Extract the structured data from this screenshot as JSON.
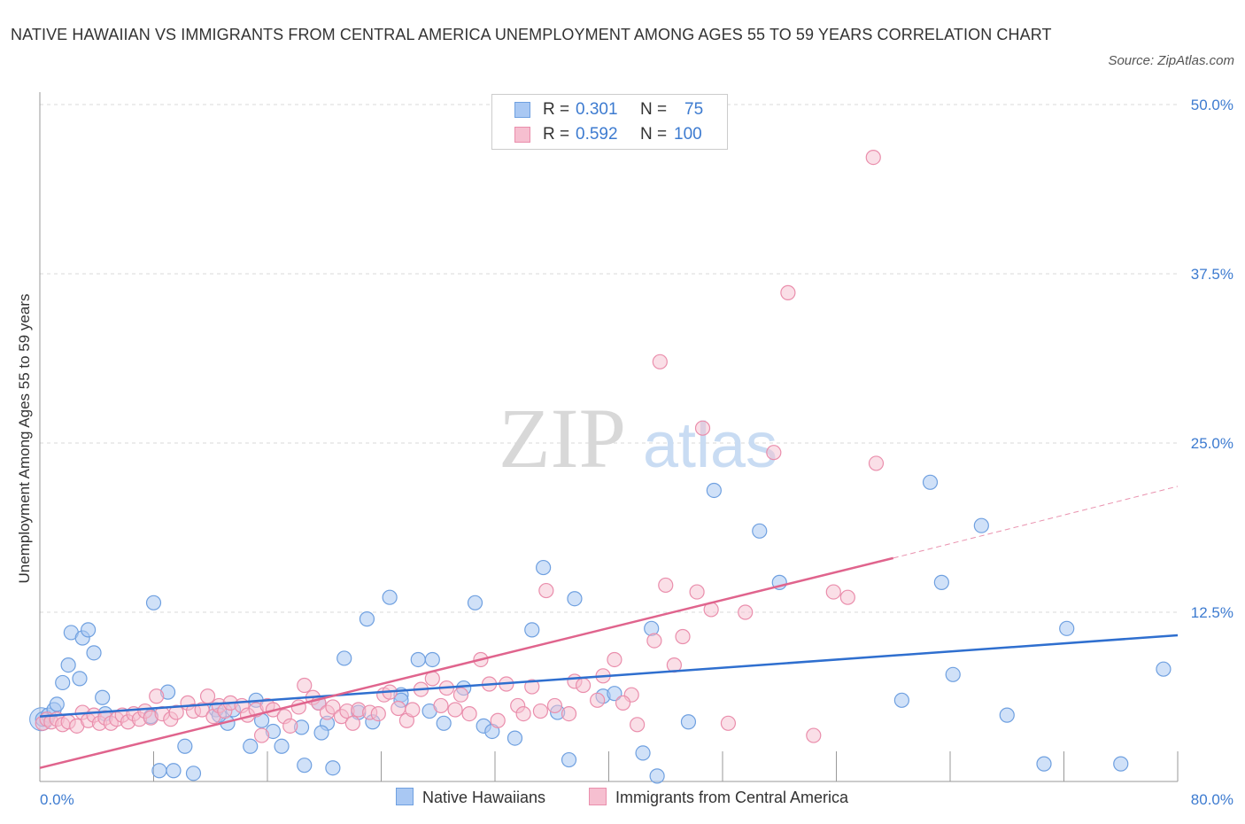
{
  "header": {
    "title": "NATIVE HAWAIIAN VS IMMIGRANTS FROM CENTRAL AMERICA UNEMPLOYMENT AMONG AGES 55 TO 59 YEARS CORRELATION CHART",
    "source": "Source: ZipAtlas.com"
  },
  "watermark": {
    "zip": "ZIP",
    "atlas": "atlas"
  },
  "legend": {
    "rows": [
      {
        "r_label": "R = ",
        "r_value": "0.301",
        "n_label": "N = ",
        "n_value": "75"
      },
      {
        "r_label": "R = ",
        "r_value": "0.592",
        "n_label": "N = ",
        "n_value": "100"
      }
    ]
  },
  "bottom_legend": {
    "items": [
      {
        "label": "Native Hawaiians"
      },
      {
        "label": "Immigrants from Central America"
      }
    ]
  },
  "colors": {
    "blue_fill": "#a9c8f3",
    "blue_stroke": "#6fa0e0",
    "blue_line": "#2f6fcf",
    "pink_fill": "#f6bfd0",
    "pink_stroke": "#ea8eac",
    "pink_line": "#e0648d",
    "tick_text": "#3d7bd0",
    "grid": "#d9d9d9"
  },
  "chart_data": {
    "type": "scatter",
    "title": "NATIVE HAWAIIAN VS IMMIGRANTS FROM CENTRAL AMERICA UNEMPLOYMENT AMONG AGES 55 TO 59 YEARS CORRELATION CHART",
    "xlabel": "",
    "ylabel": "Unemployment Among Ages 55 to 59 years",
    "xlim": [
      0,
      80
    ],
    "ylim": [
      0,
      50
    ],
    "x_tick_labels": [
      "0.0%",
      "80.0%"
    ],
    "y_ticks": [
      12.5,
      25.0,
      37.5,
      50.0
    ],
    "y_tick_labels": [
      "12.5%",
      "25.0%",
      "37.5%",
      "50.0%"
    ],
    "grid": true,
    "legend_position": "top-center",
    "series": [
      {
        "name": "Native Hawaiians",
        "R": 0.301,
        "N": 75,
        "trend": {
          "x": [
            0,
            80
          ],
          "y": [
            4.8,
            10.8
          ]
        },
        "points": [
          [
            0.2,
            4.6
          ],
          [
            0.6,
            4.9
          ],
          [
            1.0,
            5.3
          ],
          [
            1.2,
            5.7
          ],
          [
            1.6,
            7.3
          ],
          [
            2.0,
            8.6
          ],
          [
            2.2,
            11.0
          ],
          [
            2.8,
            7.6
          ],
          [
            3.0,
            10.6
          ],
          [
            3.4,
            11.2
          ],
          [
            3.8,
            9.5
          ],
          [
            4.4,
            6.2
          ],
          [
            4.6,
            5.0
          ],
          [
            8.0,
            13.2
          ],
          [
            8.4,
            0.8
          ],
          [
            9.0,
            6.6
          ],
          [
            9.4,
            0.8
          ],
          [
            10.2,
            2.6
          ],
          [
            10.8,
            0.6
          ],
          [
            12.4,
            5.3
          ],
          [
            13.2,
            4.3
          ],
          [
            13.6,
            5.3
          ],
          [
            15.2,
            6.0
          ],
          [
            15.6,
            4.5
          ],
          [
            16.4,
            3.7
          ],
          [
            17.0,
            2.6
          ],
          [
            18.4,
            4.0
          ],
          [
            18.6,
            1.2
          ],
          [
            19.6,
            5.8
          ],
          [
            20.2,
            4.3
          ],
          [
            20.6,
            1.0
          ],
          [
            21.4,
            9.1
          ],
          [
            22.4,
            5.1
          ],
          [
            23.0,
            12.0
          ],
          [
            23.4,
            4.4
          ],
          [
            24.6,
            13.6
          ],
          [
            25.4,
            6.4
          ],
          [
            26.6,
            9.0
          ],
          [
            27.4,
            5.2
          ],
          [
            28.4,
            4.3
          ],
          [
            29.8,
            6.9
          ],
          [
            30.6,
            13.2
          ],
          [
            31.2,
            4.1
          ],
          [
            31.8,
            3.7
          ],
          [
            33.4,
            3.2
          ],
          [
            34.6,
            11.2
          ],
          [
            35.4,
            15.8
          ],
          [
            36.4,
            5.1
          ],
          [
            37.2,
            1.6
          ],
          [
            37.6,
            13.5
          ],
          [
            39.6,
            6.3
          ],
          [
            40.4,
            6.5
          ],
          [
            42.4,
            2.1
          ],
          [
            43.0,
            11.3
          ],
          [
            43.4,
            0.4
          ],
          [
            45.6,
            4.4
          ],
          [
            47.4,
            21.5
          ],
          [
            50.6,
            18.5
          ],
          [
            52.0,
            14.7
          ],
          [
            60.6,
            6.0
          ],
          [
            62.6,
            22.1
          ],
          [
            63.4,
            14.7
          ],
          [
            64.2,
            7.9
          ],
          [
            66.2,
            18.9
          ],
          [
            68.0,
            4.9
          ],
          [
            70.6,
            1.3
          ],
          [
            72.2,
            11.3
          ],
          [
            76.0,
            1.3
          ],
          [
            79.0,
            8.3
          ],
          [
            12.6,
            4.9
          ],
          [
            7.8,
            4.8
          ],
          [
            14.8,
            2.6
          ],
          [
            25.4,
            6.0
          ],
          [
            27.6,
            9.0
          ],
          [
            19.8,
            3.6
          ]
        ]
      },
      {
        "name": "Immigrants from Central America",
        "R": 0.592,
        "N": 100,
        "trend": {
          "x": [
            0,
            60
          ],
          "y": [
            1.0,
            16.5
          ]
        },
        "trend_extrapolated": {
          "x": [
            60,
            80
          ],
          "y": [
            16.5,
            21.8
          ]
        },
        "points": [
          [
            0.2,
            4.3
          ],
          [
            0.5,
            4.6
          ],
          [
            0.8,
            4.4
          ],
          [
            1.2,
            4.6
          ],
          [
            1.6,
            4.2
          ],
          [
            2.0,
            4.4
          ],
          [
            2.6,
            4.1
          ],
          [
            3.0,
            5.1
          ],
          [
            3.4,
            4.5
          ],
          [
            3.8,
            4.9
          ],
          [
            4.2,
            4.3
          ],
          [
            4.6,
            4.7
          ],
          [
            5.0,
            4.3
          ],
          [
            5.4,
            4.6
          ],
          [
            5.8,
            4.9
          ],
          [
            6.2,
            4.4
          ],
          [
            6.6,
            5.0
          ],
          [
            7.0,
            4.6
          ],
          [
            7.4,
            5.2
          ],
          [
            7.8,
            4.7
          ],
          [
            8.2,
            6.3
          ],
          [
            8.6,
            5.0
          ],
          [
            9.2,
            4.6
          ],
          [
            9.6,
            5.1
          ],
          [
            10.4,
            5.8
          ],
          [
            10.8,
            5.2
          ],
          [
            11.4,
            5.3
          ],
          [
            11.8,
            6.3
          ],
          [
            12.2,
            4.8
          ],
          [
            12.6,
            5.6
          ],
          [
            13.0,
            5.2
          ],
          [
            13.4,
            5.8
          ],
          [
            14.2,
            5.6
          ],
          [
            14.6,
            4.9
          ],
          [
            15.2,
            5.3
          ],
          [
            15.6,
            3.4
          ],
          [
            16.0,
            5.6
          ],
          [
            16.4,
            5.3
          ],
          [
            17.2,
            4.8
          ],
          [
            17.6,
            4.1
          ],
          [
            18.2,
            5.5
          ],
          [
            18.6,
            7.1
          ],
          [
            19.2,
            6.2
          ],
          [
            19.6,
            5.8
          ],
          [
            20.2,
            5.1
          ],
          [
            20.6,
            5.5
          ],
          [
            21.2,
            4.8
          ],
          [
            21.6,
            5.2
          ],
          [
            22.0,
            4.3
          ],
          [
            22.4,
            5.3
          ],
          [
            23.2,
            5.1
          ],
          [
            23.8,
            5.0
          ],
          [
            24.2,
            6.4
          ],
          [
            24.6,
            6.6
          ],
          [
            25.2,
            5.4
          ],
          [
            25.8,
            4.5
          ],
          [
            26.2,
            5.3
          ],
          [
            26.8,
            6.8
          ],
          [
            27.6,
            7.6
          ],
          [
            28.2,
            5.6
          ],
          [
            28.6,
            6.9
          ],
          [
            29.2,
            5.3
          ],
          [
            29.6,
            6.4
          ],
          [
            30.2,
            5.0
          ],
          [
            31.0,
            9.0
          ],
          [
            31.6,
            7.2
          ],
          [
            32.2,
            4.5
          ],
          [
            32.8,
            7.2
          ],
          [
            33.6,
            5.6
          ],
          [
            34.0,
            5.0
          ],
          [
            34.6,
            7.0
          ],
          [
            35.6,
            14.1
          ],
          [
            36.2,
            5.6
          ],
          [
            37.2,
            5.0
          ],
          [
            37.6,
            7.4
          ],
          [
            38.2,
            7.1
          ],
          [
            39.2,
            6.0
          ],
          [
            39.6,
            7.8
          ],
          [
            40.4,
            9.0
          ],
          [
            41.6,
            6.4
          ],
          [
            42.0,
            4.2
          ],
          [
            43.2,
            10.4
          ],
          [
            43.6,
            31.0
          ],
          [
            44.0,
            14.5
          ],
          [
            44.6,
            8.6
          ],
          [
            45.2,
            10.7
          ],
          [
            46.2,
            14.0
          ],
          [
            46.6,
            26.1
          ],
          [
            47.2,
            12.7
          ],
          [
            48.4,
            4.3
          ],
          [
            49.6,
            12.5
          ],
          [
            51.6,
            24.3
          ],
          [
            52.6,
            36.1
          ],
          [
            54.4,
            3.4
          ],
          [
            55.8,
            14.0
          ],
          [
            56.8,
            13.6
          ],
          [
            58.6,
            46.1
          ],
          [
            58.8,
            23.5
          ],
          [
            35.2,
            5.2
          ],
          [
            41.0,
            5.8
          ]
        ]
      }
    ]
  }
}
